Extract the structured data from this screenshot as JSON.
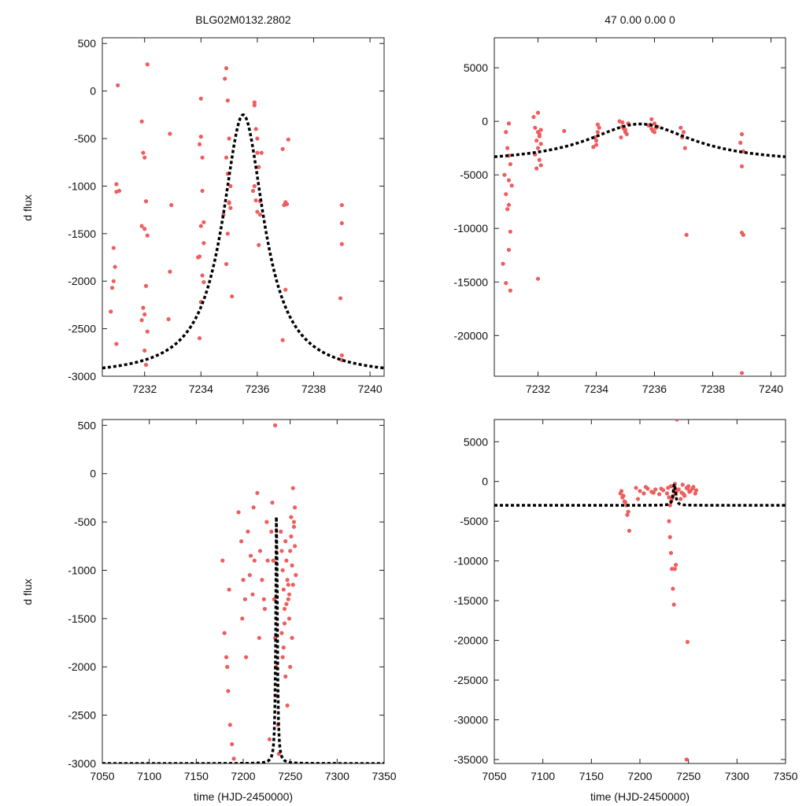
{
  "title_left": "BLG02M0132.2802",
  "title_right": "47  0.00  0.00  0",
  "ylabel": "d flux",
  "xlabel": "time (HJD-2450000)",
  "colors": {
    "points": "#ee5e5e",
    "model": "#000000",
    "frame": "#222222"
  },
  "chart_data": [
    {
      "id": "top-left",
      "type": "scatter",
      "xlim": [
        7230.5,
        7240.5
      ],
      "ylim": [
        -3000,
        560
      ],
      "xticks": [
        7232,
        7234,
        7236,
        7238,
        7240
      ],
      "yticks": [
        500,
        0,
        -500,
        -1000,
        -1500,
        -2000,
        -2500,
        -3000
      ],
      "ylabel": "d flux",
      "xlabel": "",
      "model": {
        "t0": 7235.5,
        "peak": -250,
        "base": -3000,
        "width": 0.9
      },
      "series": [
        {
          "name": "data",
          "x": [
            7230.9,
            7230.8,
            7230.9,
            7230.95,
            7231.0,
            7231.0,
            7231.05,
            7231.0,
            7230.85,
            7231.1,
            7231.9,
            7231.95,
            7232.0,
            7232.05,
            7231.9,
            7232.0,
            7232.1,
            7232.05,
            7231.95,
            7232.0,
            7231.9,
            7232.1,
            7232.0,
            7232.05,
            7232.1,
            7232.9,
            7232.95,
            7232.9,
            7232.85,
            7234.0,
            7234.0,
            7233.95,
            7234.05,
            7234.1,
            7234.0,
            7233.95,
            7234.05,
            7234.1,
            7234.0,
            7233.95,
            7234.05,
            7234.1,
            7233.9,
            7234.9,
            7234.85,
            7234.95,
            7235.0,
            7234.9,
            7235.05,
            7235.0,
            7234.95,
            7234.9,
            7235.1,
            7234.8,
            7235.0,
            7235.05,
            7234.95,
            7235.9,
            7235.95,
            7236.0,
            7236.05,
            7235.9,
            7236.1,
            7236.0,
            7235.85,
            7236.05,
            7236.0,
            7235.95,
            7236.1,
            7235.9,
            7236.15,
            7236.9,
            7237.0,
            7237.05,
            7236.95,
            7237.0,
            7237.1,
            7236.9,
            7239.0,
            7239.0,
            7239.0,
            7238.95,
            7239.0,
            7239.0
          ],
          "y": [
            -1650,
            -2320,
            -2000,
            -1850,
            -980,
            -1060,
            60,
            -2660,
            -2070,
            -1050,
            -320,
            -650,
            -700,
            -1160,
            -1420,
            -1450,
            -1520,
            -2050,
            -2280,
            -2350,
            -2410,
            -2530,
            -2730,
            -2880,
            280,
            -450,
            -1200,
            -1900,
            -2400,
            -80,
            -480,
            -560,
            -700,
            -1380,
            -1420,
            -1740,
            -1940,
            -2010,
            -2220,
            -2600,
            -1050,
            -1600,
            -1750,
            240,
            130,
            -100,
            -500,
            -700,
            -1000,
            -1180,
            -1500,
            -1820,
            -2160,
            -1300,
            -1170,
            -1230,
            -870,
            -150,
            -400,
            -650,
            -800,
            -1000,
            -1300,
            -500,
            -1050,
            -1620,
            -1270,
            -1150,
            -1160,
            -120,
            -650,
            -610,
            -1170,
            -1190,
            -1200,
            -2090,
            -510,
            -2620,
            -1200,
            -1390,
            -1610,
            -2180,
            -2780,
            -2830
          ]
        }
      ]
    },
    {
      "id": "top-right",
      "type": "scatter",
      "xlim": [
        7230.5,
        7240.5
      ],
      "ylim": [
        -23800,
        7800
      ],
      "xticks": [
        7232,
        7234,
        7236,
        7238,
        7240
      ],
      "yticks": [
        5000,
        0,
        -5000,
        -10000,
        -15000,
        -20000
      ],
      "ylabel": "",
      "xlabel": "",
      "model": {
        "t0": 7235.5,
        "peak": -250,
        "base": -3900,
        "width": 2.2
      },
      "series": [
        {
          "name": "data",
          "x": [
            7230.9,
            7230.95,
            7231.0,
            7231.05,
            7230.85,
            7231.0,
            7231.1,
            7230.9,
            7231.0,
            7230.95,
            7231.05,
            7231.0,
            7230.8,
            7230.9,
            7231.05,
            7231.0,
            7231.9,
            7232.0,
            7232.05,
            7231.95,
            7232.1,
            7232.0,
            7231.9,
            7232.05,
            7232.1,
            7231.95,
            7232.0,
            7231.85,
            7232.1,
            7232.05,
            7232.0,
            7232.9,
            7234.0,
            7233.95,
            7234.05,
            7234.1,
            7234.0,
            7233.9,
            7234.05,
            7234.8,
            7234.9,
            7234.95,
            7235.0,
            7235.05,
            7234.85,
            7235.1,
            7234.9,
            7235.0,
            7234.95,
            7235.8,
            7235.9,
            7235.95,
            7236.0,
            7236.05,
            7235.85,
            7236.1,
            7235.9,
            7236.0,
            7236.9,
            7237.0,
            7236.95,
            7237.05,
            7237.1,
            7239.0,
            7238.95,
            7239.05,
            7239.0,
            7239.0,
            7239.05,
            7239.0
          ],
          "y": [
            -1000,
            -2500,
            -3200,
            -4000,
            -5000,
            -5500,
            -6000,
            -6800,
            -7800,
            -8200,
            -10300,
            -12000,
            -13300,
            -15100,
            -15800,
            -200,
            -600,
            -1000,
            -1400,
            -1800,
            -2100,
            -2500,
            -3100,
            -3600,
            -4100,
            -4400,
            800,
            400,
            -800,
            -1200,
            -14700,
            -900,
            -2200,
            -1500,
            -1000,
            -600,
            -1800,
            -2400,
            -300,
            0,
            -500,
            -700,
            -1000,
            -1200,
            -1500,
            -200,
            -100,
            -800,
            -600,
            -400,
            -700,
            -900,
            -1000,
            -600,
            -300,
            -500,
            200,
            -200,
            -600,
            -1000,
            -1500,
            -2500,
            -10600,
            -1200,
            -2000,
            -2800,
            -4200,
            -10400,
            -10600,
            -23500
          ]
        }
      ]
    },
    {
      "id": "bottom-left",
      "type": "scatter",
      "xlim": [
        7050,
        7350
      ],
      "ylim": [
        -3000,
        560
      ],
      "xticks": [
        7050,
        7100,
        7150,
        7200,
        7250,
        7300,
        7350
      ],
      "yticks": [
        500,
        0,
        -500,
        -1000,
        -1500,
        -2000,
        -2500,
        -3000
      ],
      "ylabel": "d flux",
      "xlabel": "time (HJD-2450000)",
      "model": {
        "t0": 7235.5,
        "peak": -250,
        "base": -3000,
        "width": 0.9
      },
      "series": [
        {
          "name": "data",
          "x": [
            7180,
            7182,
            7184,
            7186,
            7188,
            7190,
            7178,
            7185,
            7183,
            7195,
            7198,
            7200,
            7202,
            7205,
            7208,
            7210,
            7212,
            7199,
            7203,
            7207,
            7211,
            7215,
            7218,
            7220,
            7222,
            7225,
            7228,
            7217,
            7223,
            7226,
            7230,
            7232,
            7233,
            7234,
            7235,
            7236,
            7237,
            7238,
            7231,
            7234,
            7240,
            7241,
            7242,
            7243,
            7244,
            7245,
            7246,
            7247,
            7248,
            7249,
            7250,
            7251,
            7252,
            7253,
            7254,
            7255,
            7256,
            7241,
            7243,
            7245,
            7247,
            7249,
            7251,
            7253,
            7255,
            7242,
            7244,
            7246,
            7248,
            7250,
            7252,
            7254
          ],
          "y": [
            -1650,
            -1900,
            -2250,
            -2600,
            -2800,
            -2950,
            -900,
            -1200,
            -2000,
            -400,
            -700,
            -1100,
            -1300,
            -600,
            -850,
            -1250,
            -900,
            -1500,
            -1900,
            -1050,
            -350,
            -200,
            -800,
            -1100,
            -1300,
            -500,
            -2750,
            -1700,
            -1400,
            -900,
            -600,
            -900,
            -1300,
            -1700,
            -2000,
            -2300,
            -2600,
            -2900,
            -300,
            500,
            -600,
            -800,
            -1000,
            -1200,
            -1400,
            -700,
            -900,
            -1100,
            -1300,
            -1500,
            -800,
            -650,
            -950,
            -1150,
            -550,
            -750,
            -1050,
            -1650,
            -1800,
            -2100,
            -2400,
            -1250,
            -450,
            -150,
            -350,
            -1900,
            -1550,
            -1350,
            -1150,
            -2000,
            -1700,
            -500
          ]
        }
      ]
    },
    {
      "id": "bottom-right",
      "type": "scatter",
      "xlim": [
        7050,
        7350
      ],
      "ylim": [
        -35500,
        7800
      ],
      "xticks": [
        7050,
        7100,
        7150,
        7200,
        7250,
        7300,
        7350
      ],
      "yticks": [
        5000,
        0,
        -5000,
        -10000,
        -15000,
        -20000,
        -25000,
        -30000,
        -35000
      ],
      "ylabel": "",
      "xlabel": "time (HJD-2450000)",
      "model": {
        "t0": 7235.5,
        "peak": -250,
        "base": -3000,
        "width": 1.4
      },
      "series": [
        {
          "name": "data",
          "x": [
            7180,
            7182,
            7184,
            7186,
            7188,
            7181,
            7183,
            7185,
            7187,
            7189,
            7196,
            7200,
            7204,
            7208,
            7212,
            7216,
            7220,
            7224,
            7198,
            7206,
            7214,
            7222,
            7228,
            7230,
            7232,
            7234,
            7236,
            7238,
            7231,
            7233,
            7235,
            7237,
            7229,
            7232,
            7236,
            7240,
            7243,
            7246,
            7249,
            7252,
            7255,
            7258,
            7242,
            7245,
            7248,
            7251,
            7254,
            7257,
            7244,
            7250,
            7230,
            7231,
            7232,
            7233,
            7234,
            7235,
            7236,
            7237,
            7238,
            7249,
            7248
          ],
          "y": [
            -1500,
            -2000,
            -2500,
            -3000,
            -3800,
            -1200,
            -1800,
            -2600,
            -4200,
            -6200,
            -800,
            -1200,
            -1500,
            -900,
            -1300,
            -1000,
            -1600,
            -1100,
            -2200,
            -700,
            -1400,
            -900,
            -1500,
            -2000,
            -2500,
            -1800,
            -900,
            -1200,
            -3000,
            -2200,
            -1100,
            -1600,
            -800,
            -600,
            -300,
            -1000,
            -1400,
            -1800,
            -900,
            -1200,
            -700,
            -1100,
            -2200,
            -1600,
            -800,
            -1300,
            -900,
            -1500,
            -400,
            -600,
            -5000,
            -7000,
            -9000,
            -11000,
            -13500,
            -15500,
            -11000,
            -10500,
            7800,
            -20200,
            -35000
          ]
        }
      ]
    }
  ]
}
